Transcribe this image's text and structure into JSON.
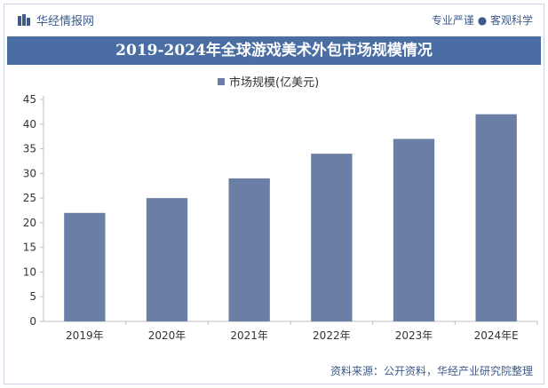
{
  "header": {
    "brand": "华经情报网",
    "tagline": "专业严谨 ● 客观科学"
  },
  "chart_data": {
    "type": "bar",
    "title": "2019-2024年全球游戏美术外包市场规模情况",
    "categories": [
      "2019年",
      "2020年",
      "2021年",
      "2022年",
      "2023年",
      "2024年E"
    ],
    "series": [
      {
        "name": "市场规模(亿美元)",
        "values": [
          22,
          25,
          29,
          34,
          37,
          42
        ]
      }
    ],
    "ylim": [
      0,
      45
    ],
    "yticks": [
      0,
      5,
      10,
      15,
      20,
      25,
      30,
      35,
      40,
      45
    ],
    "grid": false,
    "legend": "top-center",
    "bar_color": "#6a7ea6"
  },
  "footer": {
    "source": "资料来源：公开资料，华经产业研究院整理"
  }
}
